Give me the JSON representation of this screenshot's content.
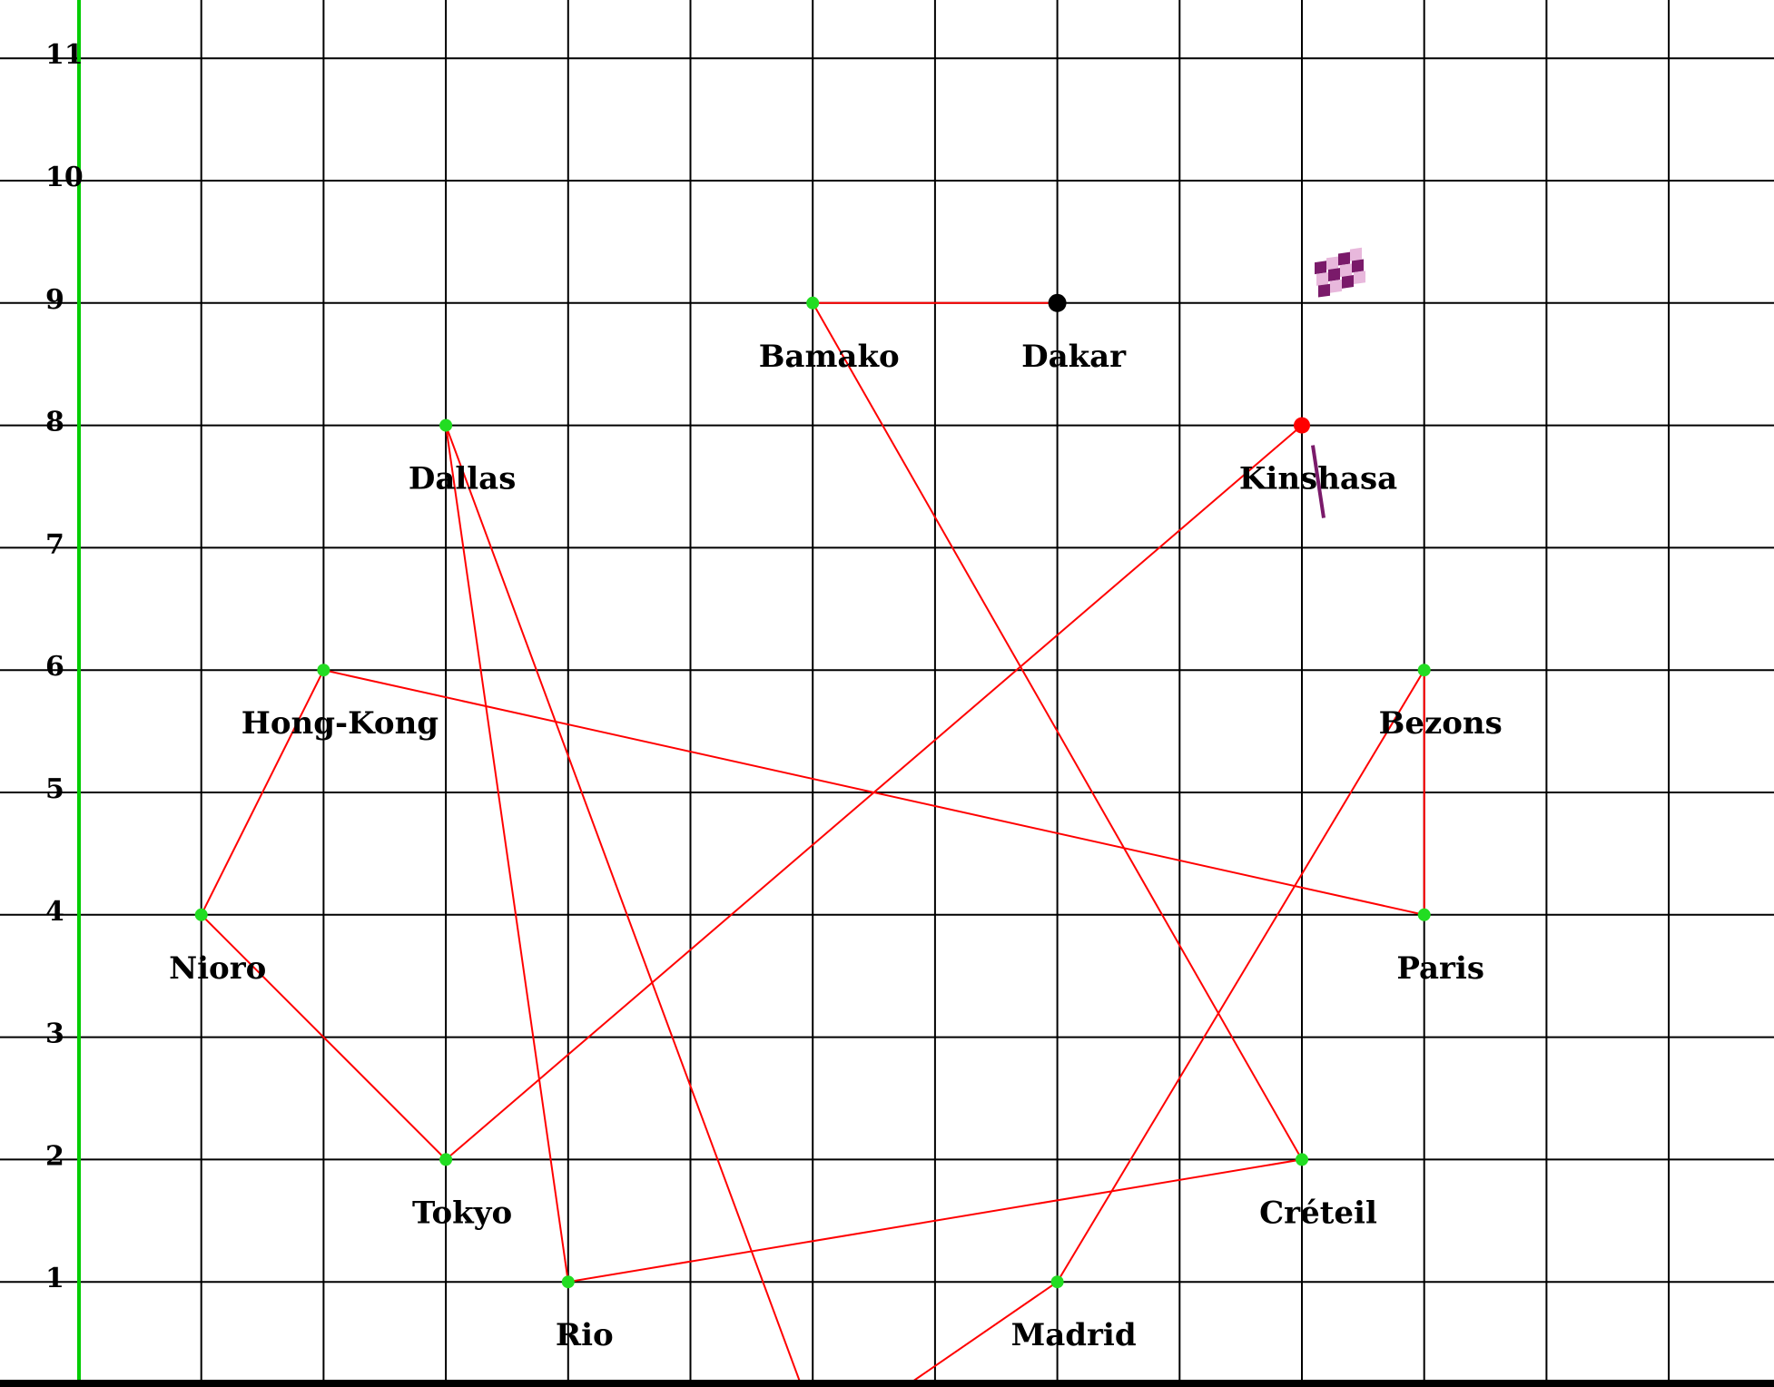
{
  "colors": {
    "background": "#ffffff",
    "grid": "#000000",
    "y_axis": "#00cc00",
    "route": "#ff0000",
    "visited_city": "#22dd22",
    "start_city": "#000000",
    "current_city": "#ff0000",
    "flag": "#7a1a6a"
  },
  "axis": {
    "y_tick_labels": [
      "1",
      "2",
      "3",
      "4",
      "5",
      "6",
      "7",
      "8",
      "9",
      "10",
      "11"
    ]
  },
  "cities": [
    {
      "name": "Dakar",
      "x": 8,
      "y": 9,
      "state": "start"
    },
    {
      "name": "Bamako",
      "x": 6,
      "y": 9,
      "state": "visited"
    },
    {
      "name": "Dallas",
      "x": 3,
      "y": 8,
      "state": "visited"
    },
    {
      "name": "Kinshasa",
      "x": 10,
      "y": 8,
      "state": "current"
    },
    {
      "name": "Hong-Kong",
      "x": 2,
      "y": 6,
      "state": "visited"
    },
    {
      "name": "Bezons",
      "x": 11,
      "y": 6,
      "state": "visited"
    },
    {
      "name": "Nioro",
      "x": 1,
      "y": 4,
      "state": "visited"
    },
    {
      "name": "Paris",
      "x": 11,
      "y": 4,
      "state": "visited"
    },
    {
      "name": "Tokyo",
      "x": 3,
      "y": 2,
      "state": "visited"
    },
    {
      "name": "Créteil",
      "x": 10,
      "y": 2,
      "state": "visited"
    },
    {
      "name": "Rio",
      "x": 4,
      "y": 1,
      "state": "visited"
    },
    {
      "name": "Madrid",
      "x": 8,
      "y": 1,
      "state": "visited"
    }
  ],
  "route": [
    [
      8,
      9
    ],
    [
      6,
      9
    ],
    [
      10,
      2
    ],
    [
      4,
      1
    ],
    [
      3,
      8
    ],
    [
      6,
      -0.1
    ],
    [
      6.4,
      -0.1
    ],
    [
      8,
      1
    ],
    [
      11,
      6
    ],
    [
      11,
      4
    ],
    [
      2,
      6
    ],
    [
      1,
      4
    ],
    [
      3,
      2
    ],
    [
      10,
      8
    ]
  ],
  "finish_flag": {
    "icon": "checkered-flag-icon",
    "at_city": "Kinshasa"
  }
}
